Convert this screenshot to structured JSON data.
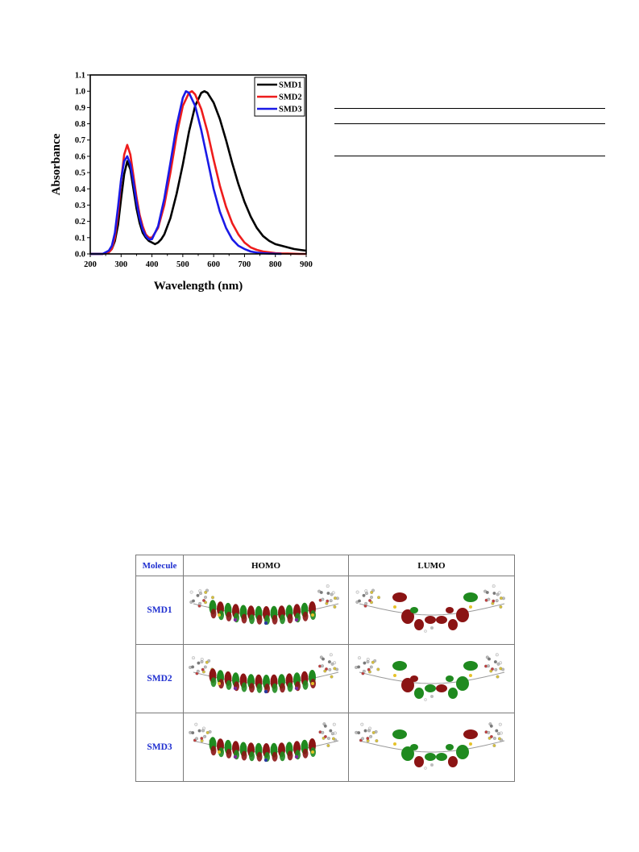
{
  "chart_data": {
    "type": "line",
    "title": "",
    "xlabel": "Wavelength (nm)",
    "ylabel": "Absorbance",
    "xlim": [
      200,
      900
    ],
    "ylim": [
      0.0,
      1.1
    ],
    "x_ticks": [
      "200",
      "300",
      "400",
      "500",
      "600",
      "700",
      "800",
      "900"
    ],
    "y_ticks": [
      "0.0",
      "0.1",
      "0.2",
      "0.3",
      "0.4",
      "0.5",
      "0.6",
      "0.7",
      "0.8",
      "0.9",
      "1.0",
      "1.1"
    ],
    "grid": false,
    "legend_position": "top-right",
    "series": [
      {
        "name": "SMD1",
        "color": "#000000",
        "x": [
          200,
          240,
          260,
          270,
          280,
          290,
          300,
          310,
          320,
          330,
          340,
          350,
          360,
          370,
          380,
          390,
          400,
          410,
          420,
          430,
          440,
          460,
          480,
          500,
          520,
          540,
          560,
          570,
          580,
          600,
          620,
          640,
          660,
          680,
          700,
          720,
          740,
          760,
          780,
          800,
          820,
          840,
          860,
          880,
          900
        ],
        "y": [
          0.0,
          0.0,
          0.01,
          0.03,
          0.08,
          0.18,
          0.34,
          0.49,
          0.57,
          0.52,
          0.4,
          0.28,
          0.19,
          0.13,
          0.1,
          0.08,
          0.07,
          0.06,
          0.07,
          0.09,
          0.12,
          0.22,
          0.37,
          0.55,
          0.75,
          0.91,
          0.99,
          1.0,
          0.99,
          0.93,
          0.83,
          0.7,
          0.56,
          0.43,
          0.32,
          0.23,
          0.16,
          0.11,
          0.08,
          0.06,
          0.05,
          0.04,
          0.03,
          0.025,
          0.02
        ]
      },
      {
        "name": "SMD2",
        "color": "#ee1c1c",
        "x": [
          200,
          240,
          260,
          270,
          280,
          290,
          300,
          310,
          320,
          330,
          340,
          350,
          360,
          370,
          380,
          390,
          400,
          420,
          440,
          460,
          480,
          500,
          520,
          530,
          540,
          560,
          580,
          600,
          620,
          640,
          660,
          680,
          700,
          720,
          740,
          760,
          780,
          800,
          820,
          840,
          860,
          880,
          900
        ],
        "y": [
          0.0,
          0.0,
          0.01,
          0.03,
          0.1,
          0.25,
          0.45,
          0.61,
          0.67,
          0.61,
          0.48,
          0.35,
          0.24,
          0.17,
          0.12,
          0.1,
          0.1,
          0.16,
          0.3,
          0.5,
          0.73,
          0.91,
          0.99,
          1.0,
          0.98,
          0.89,
          0.75,
          0.58,
          0.42,
          0.29,
          0.19,
          0.12,
          0.07,
          0.04,
          0.025,
          0.015,
          0.01,
          0.005,
          0.003,
          0.002,
          0.001,
          0.0,
          0.0
        ]
      },
      {
        "name": "SMD3",
        "color": "#1a1ae6",
        "x": [
          200,
          240,
          260,
          270,
          280,
          290,
          300,
          310,
          320,
          330,
          340,
          350,
          360,
          370,
          380,
          390,
          400,
          420,
          440,
          460,
          480,
          500,
          510,
          520,
          540,
          560,
          580,
          600,
          620,
          640,
          660,
          680,
          700,
          720,
          740,
          760,
          780,
          800,
          820
        ],
        "y": [
          0.0,
          0.0,
          0.02,
          0.05,
          0.13,
          0.29,
          0.46,
          0.57,
          0.6,
          0.55,
          0.44,
          0.32,
          0.22,
          0.15,
          0.11,
          0.09,
          0.09,
          0.17,
          0.34,
          0.56,
          0.79,
          0.96,
          1.0,
          0.99,
          0.91,
          0.76,
          0.58,
          0.4,
          0.26,
          0.16,
          0.09,
          0.05,
          0.03,
          0.015,
          0.008,
          0.004,
          0.002,
          0.001,
          0.0
        ]
      }
    ]
  },
  "table": {
    "headers": {
      "molecule": "Molecule",
      "homo": "HOMO",
      "lumo": "LUMO"
    },
    "rows": [
      {
        "molecule": "SMD1"
      },
      {
        "molecule": "SMD2"
      },
      {
        "molecule": "SMD3"
      }
    ],
    "colors": {
      "label_blue": "#1f2fd0",
      "lobe_green": "#1f8a1f",
      "lobe_red": "#8b1414"
    }
  }
}
